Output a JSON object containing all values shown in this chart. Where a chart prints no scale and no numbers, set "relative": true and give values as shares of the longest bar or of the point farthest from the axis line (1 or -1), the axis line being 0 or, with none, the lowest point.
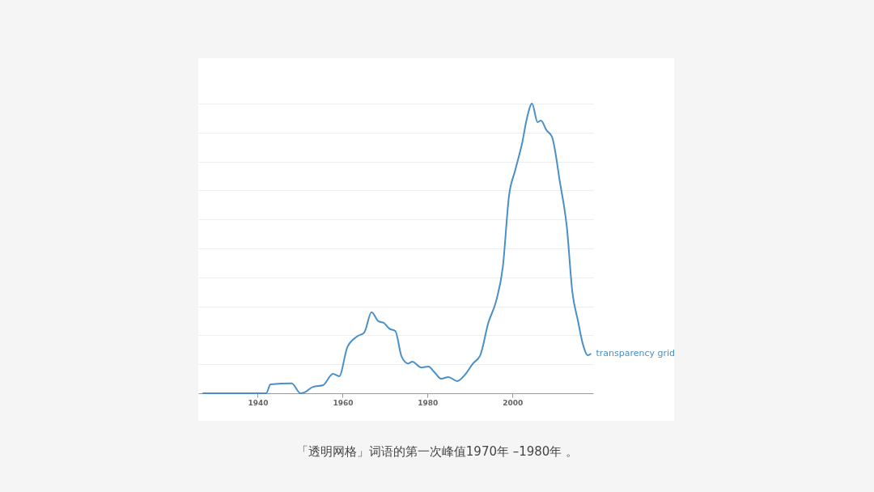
{
  "chart_data": {
    "type": "line",
    "relative": true,
    "xlim": [
      1926,
      2019
    ],
    "xticks": [
      1940,
      1960,
      1980,
      2000
    ],
    "grid": "y",
    "legend": false,
    "annotations": [
      "「透明网格」词语的第一次峰值1970年 –1980年 。"
    ],
    "series": [
      {
        "name": "transparency grid",
        "color": "#4a8fc7",
        "x": [
          1927,
          1942,
          1943,
          1948,
          1950.1,
          1951,
          1953,
          1955.4,
          1957.7,
          1959.2,
          1961.1,
          1963.4,
          1965.1,
          1966.8,
          1968.4,
          1969.7,
          1971,
          1972.4,
          1973.9,
          1975.4,
          1976.4,
          1978.5,
          1980.2,
          1981.5,
          1983.2,
          1984.9,
          1987,
          1988.8,
          1990.7,
          1992.4,
          1994.3,
          1996.2,
          1997.7,
          1999.2,
          2000.6,
          2002.3,
          2003.4,
          2004.6,
          2005.9,
          2006.7,
          2008,
          2009.3,
          2011.2,
          2012.8,
          2014.1,
          2015.4,
          2016.6,
          2017.7,
          2018.5
        ],
        "values": [
          0,
          0,
          0.031,
          0.034,
          0,
          0.003,
          0.022,
          0.028,
          0.067,
          0.059,
          0.159,
          0.196,
          0.21,
          0.28,
          0.249,
          0.243,
          0.223,
          0.215,
          0.126,
          0.103,
          0.109,
          0.089,
          0.092,
          0.075,
          0.05,
          0.056,
          0.042,
          0.064,
          0.103,
          0.131,
          0.243,
          0.321,
          0.433,
          0.684,
          0.768,
          0.866,
          0.95,
          1,
          0.936,
          0.941,
          0.908,
          0.885,
          0.726,
          0.573,
          0.349,
          0.251,
          0.168,
          0.131,
          0.137
        ]
      }
    ]
  }
}
